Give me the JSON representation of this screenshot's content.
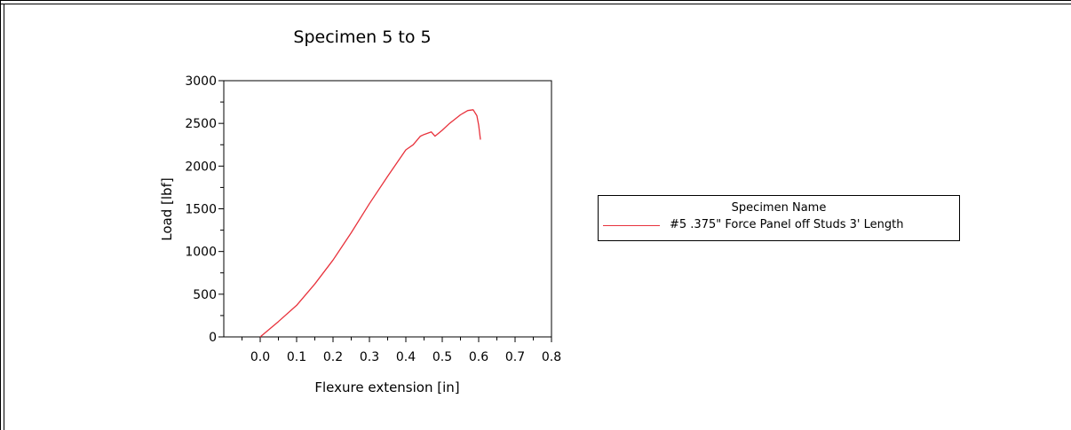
{
  "chart_data": {
    "type": "line",
    "title": "Specimen 5 to 5",
    "xlabel": "Flexure extension [in]",
    "ylabel": "Load [lbf]",
    "xlim": [
      -0.1,
      0.8
    ],
    "ylim": [
      0,
      3000
    ],
    "xticks": [
      "0.0",
      "0.1",
      "0.2",
      "0.3",
      "0.4",
      "0.5",
      "0.6",
      "0.7",
      "0.8"
    ],
    "yticks": [
      "0",
      "500",
      "1000",
      "1500",
      "2000",
      "2500",
      "3000"
    ],
    "grid": false,
    "legend_title": "Specimen Name",
    "legend_position": "right",
    "series": [
      {
        "name": "#5 .375\" Force Panel off Studs 3' Length",
        "color": "#e8323c",
        "x": [
          0.0,
          0.05,
          0.1,
          0.15,
          0.2,
          0.25,
          0.3,
          0.35,
          0.4,
          0.42,
          0.44,
          0.45,
          0.47,
          0.48,
          0.5,
          0.52,
          0.55,
          0.57,
          0.585,
          0.595,
          0.6,
          0.605
        ],
        "y": [
          0,
          180,
          370,
          620,
          900,
          1220,
          1560,
          1880,
          2190,
          2250,
          2350,
          2370,
          2400,
          2350,
          2420,
          2500,
          2600,
          2650,
          2660,
          2590,
          2480,
          2310
        ]
      }
    ]
  }
}
